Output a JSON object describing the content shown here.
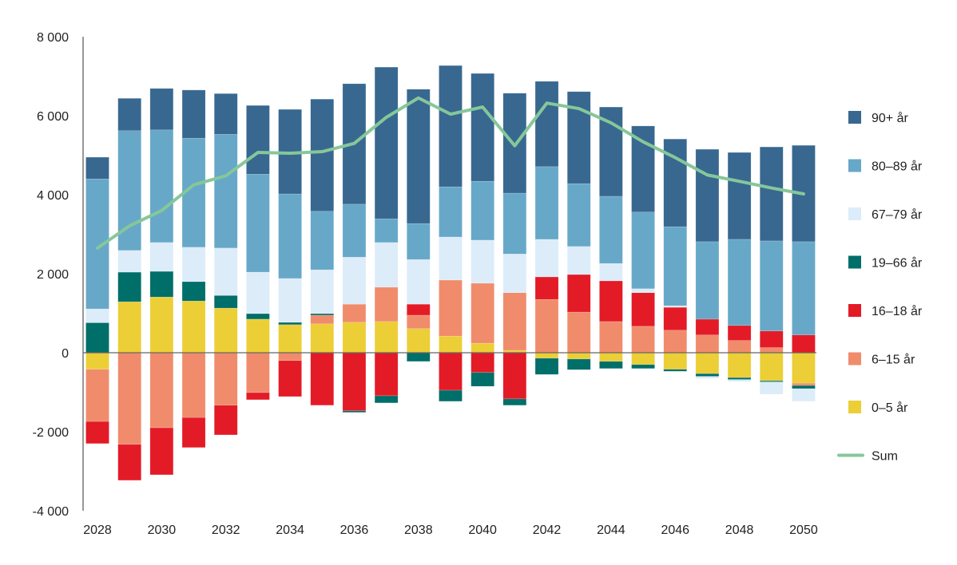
{
  "chart_data": {
    "type": "bar",
    "stacked": true,
    "title": "",
    "xlabel": "",
    "ylabel": "",
    "ylim": [
      -4000,
      8000
    ],
    "yticks": [
      -4000,
      -2000,
      0,
      2000,
      4000,
      6000,
      8000
    ],
    "ytick_labels": [
      "-4 000",
      "-2 000",
      "0",
      "2 000",
      "4 000",
      "6 000",
      "8 000"
    ],
    "xtick_labels": [
      "2028",
      "2030",
      "2032",
      "2034",
      "2036",
      "2038",
      "2040",
      "2042",
      "2044",
      "2046",
      "2048",
      "2050"
    ],
    "grid": false,
    "legend_position": "right",
    "categories": [
      2028,
      2029,
      2030,
      2031,
      2032,
      2033,
      2034,
      2035,
      2036,
      2037,
      2038,
      2039,
      2040,
      2041,
      2042,
      2043,
      2044,
      2045,
      2046,
      2047,
      2048,
      2049,
      2050
    ],
    "series": [
      {
        "name": "0–5 år",
        "color": "#ecce36",
        "values": [
          -420,
          1290,
          1410,
          1310,
          1130,
          850,
          710,
          730,
          770,
          790,
          610,
          420,
          240,
          60,
          -140,
          -160,
          -220,
          -300,
          -420,
          -530,
          -630,
          -710,
          -770
        ]
      },
      {
        "name": "6–15 år",
        "color": "#f08c6c",
        "values": [
          -1320,
          -2320,
          -1900,
          -1640,
          -1330,
          -1010,
          -200,
          220,
          460,
          870,
          340,
          1420,
          1520,
          1460,
          1350,
          1030,
          790,
          670,
          570,
          450,
          310,
          130,
          -60
        ]
      },
      {
        "name": "16–18 år",
        "color": "#e31b27",
        "values": [
          -560,
          -910,
          -1190,
          -760,
          -750,
          -180,
          -910,
          -1330,
          -1470,
          -1090,
          280,
          -950,
          -500,
          -1170,
          570,
          950,
          1030,
          850,
          580,
          400,
          380,
          420,
          450
        ]
      },
      {
        "name": "19–66 år",
        "color": "#006e69",
        "values": [
          760,
          750,
          650,
          490,
          320,
          140,
          60,
          40,
          -40,
          -180,
          -220,
          -280,
          -350,
          -160,
          -410,
          -270,
          -180,
          -100,
          -50,
          -70,
          -50,
          -30,
          -80
        ]
      },
      {
        "name": "67–79 år",
        "color": "#dcecf9",
        "values": [
          350,
          550,
          730,
          870,
          1200,
          1050,
          1110,
          1110,
          1190,
          1130,
          1130,
          1090,
          1090,
          980,
          950,
          710,
          440,
          100,
          40,
          -50,
          -50,
          -310,
          -320
        ]
      },
      {
        "name": "80–89 år",
        "color": "#67a8c8",
        "values": [
          3290,
          3030,
          2850,
          2760,
          2880,
          2480,
          2140,
          1480,
          1340,
          600,
          910,
          1270,
          1490,
          1540,
          1840,
          1590,
          1700,
          1940,
          2000,
          1960,
          2180,
          2280,
          2360
        ]
      },
      {
        "name": "90+ år",
        "color": "#386890",
        "values": [
          550,
          820,
          1050,
          1220,
          1030,
          1740,
          2140,
          2840,
          3050,
          3840,
          3400,
          3070,
          2730,
          2530,
          2160,
          2330,
          2260,
          2180,
          2220,
          2340,
          2200,
          2380,
          2440
        ]
      }
    ],
    "line": {
      "name": "Sum",
      "color": "#86c79a",
      "values": [
        2650,
        3210,
        3600,
        4250,
        4480,
        5070,
        5050,
        5090,
        5300,
        5960,
        6450,
        6040,
        6220,
        5240,
        6320,
        6180,
        5820,
        5340,
        4940,
        4500,
        4340,
        4170,
        4020
      ]
    },
    "legend_order": [
      "90+ år",
      "80–89 år",
      "67–79 år",
      "19–66 år",
      "16–18 år",
      "6–15 år",
      "0–5 år",
      "Sum"
    ]
  }
}
